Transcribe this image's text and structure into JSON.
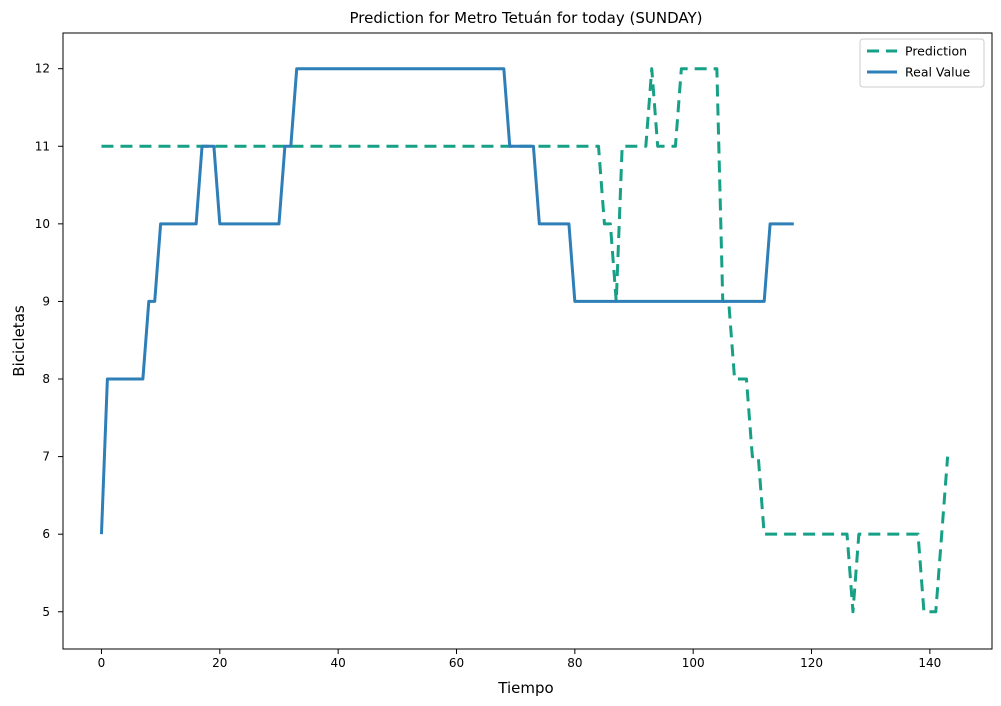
{
  "chart_data": {
    "type": "line",
    "title": "Prediction for Metro Tetuán for today (SUNDAY)",
    "xlabel": "Tiempo",
    "ylabel": "Bicicletas",
    "xlim": [
      -6.5,
      150.5
    ],
    "ylim": [
      4.52,
      12.46
    ],
    "xticks": [
      0,
      20,
      40,
      60,
      80,
      100,
      120,
      140
    ],
    "yticks": [
      5,
      6,
      7,
      8,
      9,
      10,
      11,
      12
    ],
    "grid": false,
    "legend_position": "top-right",
    "series": [
      {
        "name": "Prediction",
        "color": "#16a085",
        "style": "dashed",
        "points": [
          [
            0,
            11
          ],
          [
            84,
            11
          ],
          [
            85,
            10
          ],
          [
            86,
            10
          ],
          [
            87,
            9
          ],
          [
            88,
            11
          ],
          [
            92,
            11
          ],
          [
            93,
            12
          ],
          [
            94,
            11
          ],
          [
            97,
            11
          ],
          [
            98,
            12
          ],
          [
            104,
            12
          ],
          [
            105,
            9
          ],
          [
            106,
            9
          ],
          [
            107,
            8
          ],
          [
            109,
            8
          ],
          [
            110,
            7
          ],
          [
            111,
            7
          ],
          [
            112,
            6
          ],
          [
            126,
            6
          ],
          [
            127,
            5
          ],
          [
            128,
            6
          ],
          [
            138,
            6
          ],
          [
            139,
            5
          ],
          [
            141,
            5
          ],
          [
            143,
            7
          ]
        ]
      },
      {
        "name": "Real Value",
        "color": "#2e7fb8",
        "style": "solid",
        "points": [
          [
            0,
            6
          ],
          [
            1,
            8
          ],
          [
            7,
            8
          ],
          [
            8,
            9
          ],
          [
            9,
            9
          ],
          [
            10,
            10
          ],
          [
            16,
            10
          ],
          [
            17,
            11
          ],
          [
            19,
            11
          ],
          [
            20,
            10
          ],
          [
            30,
            10
          ],
          [
            31,
            11
          ],
          [
            32,
            11
          ],
          [
            33,
            12
          ],
          [
            68,
            12
          ],
          [
            69,
            11
          ],
          [
            73,
            11
          ],
          [
            74,
            10
          ],
          [
            79,
            10
          ],
          [
            80,
            9
          ],
          [
            112,
            9
          ],
          [
            113,
            10
          ],
          [
            117,
            10
          ]
        ]
      }
    ]
  }
}
